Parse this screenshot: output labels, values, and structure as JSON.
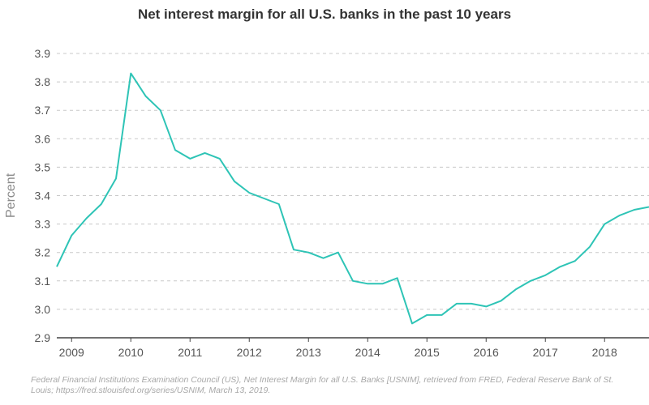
{
  "chart_data": {
    "type": "line",
    "title": "Net interest margin for all U.S. banks in the past 10 years",
    "ylabel": "Percent",
    "xlabel": "",
    "ylim": [
      2.9,
      3.9
    ],
    "yticks": [
      "3.9",
      "3.8",
      "3.7",
      "3.6",
      "3.5",
      "3.4",
      "3.3",
      "3.2",
      "3.1",
      "3.0",
      "2.9"
    ],
    "ytick_values": [
      3.9,
      3.8,
      3.7,
      3.6,
      3.5,
      3.4,
      3.3,
      3.2,
      3.1,
      3.0,
      2.9
    ],
    "xlim": [
      2009.0,
      2019.0
    ],
    "xticks": [
      "2009",
      "2010",
      "2011",
      "2012",
      "2013",
      "2014",
      "2015",
      "2016",
      "2017",
      "2018"
    ],
    "xtick_values": [
      2009.25,
      2010.25,
      2011.25,
      2012.25,
      2013.25,
      2014.25,
      2015.25,
      2016.25,
      2017.25,
      2018.25
    ],
    "grid": "horizontal dashed",
    "line_color": "#2ec4b6",
    "series": [
      {
        "x": [
          2009.0,
          2009.25,
          2009.5,
          2009.75,
          2010.0,
          2010.25,
          2010.5,
          2010.75,
          2011.0,
          2011.25,
          2011.5,
          2011.75,
          2012.0,
          2012.25,
          2012.5,
          2012.75,
          2013.0,
          2013.25,
          2013.5,
          2013.75,
          2014.0,
          2014.25,
          2014.5,
          2014.75,
          2015.0,
          2015.25,
          2015.5,
          2015.75,
          2016.0,
          2016.25,
          2016.5,
          2016.75,
          2017.0,
          2017.25,
          2017.5,
          2017.75,
          2018.0,
          2018.25,
          2018.5,
          2018.75,
          2019.0
        ],
        "values": [
          3.15,
          3.26,
          3.32,
          3.37,
          3.46,
          3.83,
          3.75,
          3.7,
          3.56,
          3.53,
          3.55,
          3.53,
          3.45,
          3.41,
          3.39,
          3.37,
          3.21,
          3.2,
          3.18,
          3.2,
          3.1,
          3.09,
          3.09,
          3.11,
          2.95,
          2.98,
          2.98,
          3.02,
          3.02,
          3.01,
          3.03,
          3.07,
          3.1,
          3.12,
          3.15,
          3.17,
          3.22,
          3.3,
          3.33,
          3.35,
          3.36
        ]
      }
    ]
  },
  "source_note": "Federal Financial Institutions Examination Council (US), Net Interest Margin for all U.S. Banks [USNIM], retrieved from FRED, Federal Reserve Bank of St. Louis; https://fred.stlouisfed.org/series/USNIM, March 13, 2019."
}
